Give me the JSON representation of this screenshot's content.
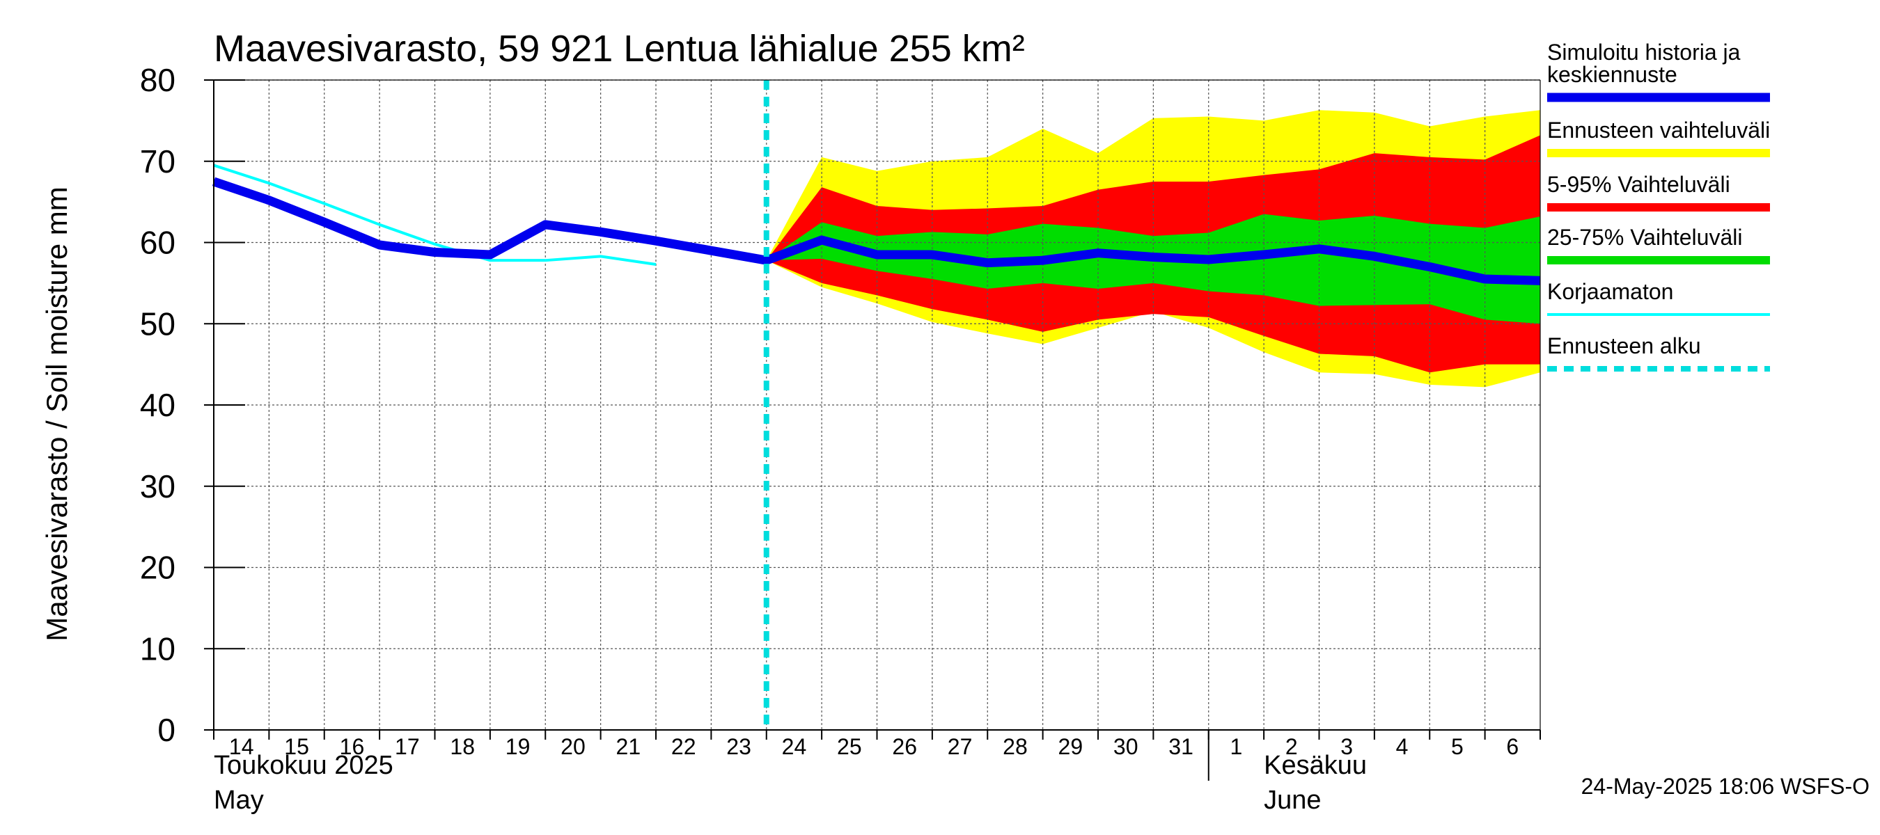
{
  "chart_data": {
    "type": "area",
    "title": "Maavesivarasto, 59 921 Lentua lähialue 255 km²",
    "ylabel": "Maavesivarasto / Soil moisture   mm",
    "ylim": [
      0,
      80
    ],
    "yticks": [
      0,
      10,
      20,
      30,
      40,
      50,
      60,
      70,
      80
    ],
    "grid": true,
    "legend_position": "right",
    "x_start": "2025-05-14",
    "x_end": "2025-06-07",
    "x_tick_labels": [
      "14",
      "15",
      "16",
      "17",
      "18",
      "19",
      "20",
      "21",
      "22",
      "23",
      "24",
      "25",
      "26",
      "27",
      "28",
      "29",
      "30",
      "31",
      "1",
      "2",
      "3",
      "4",
      "5",
      "6"
    ],
    "month_labels": [
      {
        "date": "2025-05-14",
        "fi": "Toukokuu  2025",
        "en": "May"
      },
      {
        "date": "2025-06-02",
        "fi": "Kesäkuu",
        "en": "June"
      }
    ],
    "month_divider": "2025-06-01",
    "forecast_start": "2025-05-24",
    "timestamp": "24-May-2025 18:06 WSFS-O",
    "colors": {
      "history": "#0000ee",
      "range_full": "#ffff00",
      "range_5_95": "#ff0000",
      "range_25_75": "#00dd00",
      "uncorrected": "#00ffff",
      "forecast_start": "#00dddd"
    },
    "legend": [
      {
        "label": "Simuloitu historia ja keskiennuste",
        "lines": [
          "Simuloitu historia ja",
          "keskiennuste"
        ],
        "color": "#0000ee",
        "style": "thick"
      },
      {
        "label": "Ennusteen vaihteluväli",
        "color": "#ffff00",
        "style": "band"
      },
      {
        "label": "5-95% Vaihteluväli",
        "color": "#ff0000",
        "style": "band"
      },
      {
        "label": "25-75% Vaihteluväli",
        "color": "#00dd00",
        "style": "band"
      },
      {
        "label": "Korjaamaton",
        "color": "#00ffff",
        "style": "thin"
      },
      {
        "label": "Ennusteen alku",
        "color": "#00dddd",
        "style": "dashed"
      }
    ],
    "forecast_x": [
      "2025-05-24",
      "2025-05-25",
      "2025-05-26",
      "2025-05-27",
      "2025-05-28",
      "2025-05-29",
      "2025-05-30",
      "2025-05-31",
      "2025-06-01",
      "2025-06-02",
      "2025-06-03",
      "2025-06-04",
      "2025-06-05",
      "2025-06-06",
      "2025-06-07"
    ],
    "series": [
      {
        "name": "Ennusteen vaihteluväli",
        "upper": [
          57.8,
          70.5,
          68.8,
          70.0,
          70.5,
          74.0,
          71.0,
          75.3,
          75.5,
          75.0,
          76.3,
          76.0,
          74.3,
          75.5,
          76.3
        ],
        "lower": [
          57.8,
          54.5,
          52.5,
          50.2,
          48.8,
          47.5,
          49.5,
          51.5,
          49.5,
          46.5,
          44.0,
          43.8,
          42.5,
          42.2,
          44.0
        ]
      },
      {
        "name": "5-95% Vaihteluväli",
        "upper": [
          57.8,
          66.8,
          64.5,
          64.0,
          64.2,
          64.5,
          66.5,
          67.5,
          67.5,
          68.3,
          69.0,
          71.0,
          70.5,
          70.2,
          73.2
        ],
        "lower": [
          57.8,
          55.0,
          53.5,
          51.8,
          50.5,
          49.0,
          50.5,
          51.2,
          50.8,
          48.5,
          46.3,
          46.0,
          44.0,
          45.0,
          45.0
        ]
      },
      {
        "name": "25-75% Vaihteluväli",
        "upper": [
          57.8,
          62.5,
          60.8,
          61.3,
          61.0,
          62.3,
          61.8,
          60.8,
          61.2,
          63.5,
          62.7,
          63.3,
          62.3,
          61.8,
          63.2
        ],
        "lower": [
          57.8,
          58.0,
          56.5,
          55.5,
          54.3,
          55.0,
          54.3,
          55.0,
          54.0,
          53.5,
          52.2,
          52.3,
          52.4,
          50.5,
          50.0
        ]
      },
      {
        "name": "Simuloitu historia ja keskiennuste",
        "x": [
          "2025-05-14",
          "2025-05-15",
          "2025-05-16",
          "2025-05-17",
          "2025-05-18",
          "2025-05-19",
          "2025-05-20",
          "2025-05-21",
          "2025-05-22",
          "2025-05-23",
          "2025-05-24",
          "2025-05-25",
          "2025-05-26",
          "2025-05-27",
          "2025-05-28",
          "2025-05-29",
          "2025-05-30",
          "2025-05-31",
          "2025-06-01",
          "2025-06-02",
          "2025-06-03",
          "2025-06-04",
          "2025-06-05",
          "2025-06-06",
          "2025-06-07"
        ],
        "values": [
          67.5,
          65.2,
          62.5,
          59.7,
          58.8,
          58.5,
          62.2,
          61.3,
          60.2,
          59.0,
          57.8,
          60.3,
          58.5,
          58.5,
          57.5,
          57.8,
          58.7,
          58.2,
          57.9,
          58.5,
          59.2,
          58.3,
          57.0,
          55.5,
          55.3
        ]
      },
      {
        "name": "Korjaamaton",
        "x": [
          "2025-05-14",
          "2025-05-15",
          "2025-05-16",
          "2025-05-17",
          "2025-05-18",
          "2025-05-19",
          "2025-05-20",
          "2025-05-21",
          "2025-05-22"
        ],
        "values": [
          69.5,
          67.3,
          64.8,
          62.2,
          59.8,
          57.8,
          57.8,
          58.3,
          57.3
        ]
      }
    ]
  }
}
